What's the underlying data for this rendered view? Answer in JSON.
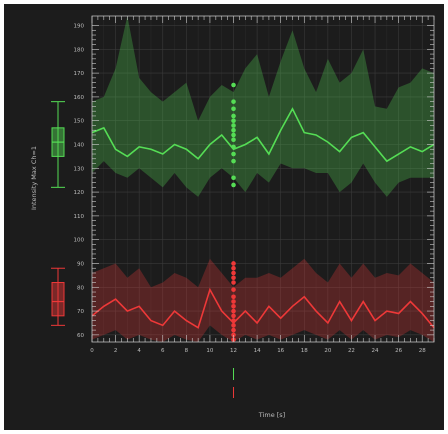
{
  "chart_data": {
    "type": "line",
    "ylabel": "Intensity Max Ch=1",
    "xlabel": "Time [s]",
    "xlim": [
      0,
      29
    ],
    "ylim": [
      57,
      194
    ],
    "x_ticks": [
      0,
      2,
      4,
      6,
      8,
      10,
      12,
      14,
      16,
      18,
      20,
      22,
      24,
      26,
      28
    ],
    "y_ticks": [
      60,
      70,
      80,
      90,
      100,
      110,
      120,
      130,
      140,
      150,
      160,
      170,
      180,
      190
    ],
    "grid": true,
    "colors": {
      "green": "#55dd55",
      "red": "#ee3838",
      "background": "#1c1c1c",
      "axis": "#cfcfcf"
    },
    "series": [
      {
        "color": "green",
        "x": [
          0,
          1,
          2,
          3,
          4,
          5,
          6,
          7,
          8,
          9,
          10,
          11,
          12,
          13,
          14,
          15,
          16,
          17,
          18,
          19,
          20,
          21,
          22,
          23,
          24,
          25,
          26,
          27,
          28,
          29
        ],
        "mean": [
          145,
          147,
          138,
          135,
          139,
          138,
          136,
          140,
          138,
          134,
          140,
          144,
          138,
          140,
          143,
          136,
          146,
          155,
          145,
          144,
          141,
          137,
          143,
          145,
          139,
          133,
          136,
          139,
          137,
          140
        ],
        "upper": [
          158,
          160,
          172,
          194,
          168,
          162,
          158,
          162,
          166,
          150,
          160,
          165,
          162,
          172,
          178,
          160,
          175,
          188,
          172,
          162,
          176,
          166,
          170,
          180,
          156,
          155,
          164,
          166,
          172,
          170
        ],
        "lower": [
          128,
          133,
          128,
          126,
          130,
          126,
          122,
          128,
          122,
          118,
          126,
          130,
          126,
          120,
          128,
          124,
          132,
          130,
          130,
          128,
          128,
          120,
          124,
          132,
          124,
          118,
          124,
          126,
          126,
          126
        ],
        "scatter_x": 12,
        "scatter_y": [
          123,
          126,
          133,
          136,
          139,
          142,
          144,
          146,
          148,
          150,
          152,
          155,
          158,
          165
        ],
        "box": {
          "whisker_low": 122,
          "q1": 135,
          "median": 141,
          "q3": 147,
          "whisker_high": 158
        }
      },
      {
        "color": "red",
        "x": [
          0,
          1,
          2,
          3,
          4,
          5,
          6,
          7,
          8,
          9,
          10,
          11,
          12,
          13,
          14,
          15,
          16,
          17,
          18,
          19,
          20,
          21,
          22,
          23,
          24,
          25,
          26,
          27,
          28,
          29
        ],
        "mean": [
          68,
          72,
          75,
          70,
          72,
          66,
          64,
          70,
          66,
          63,
          79,
          70,
          65,
          70,
          65,
          72,
          67,
          72,
          76,
          70,
          65,
          74,
          66,
          74,
          66,
          70,
          69,
          74,
          69,
          63
        ],
        "upper": [
          86,
          88,
          90,
          84,
          88,
          80,
          82,
          86,
          84,
          80,
          92,
          86,
          80,
          84,
          84,
          86,
          84,
          88,
          92,
          86,
          82,
          90,
          84,
          90,
          84,
          86,
          85,
          90,
          86,
          82
        ],
        "lower": [
          58,
          60,
          62,
          58,
          60,
          58,
          57,
          60,
          58,
          57,
          64,
          60,
          57,
          60,
          58,
          60,
          58,
          60,
          62,
          60,
          58,
          62,
          58,
          62,
          58,
          60,
          59,
          62,
          60,
          57
        ],
        "scatter_x": 12,
        "scatter_y": [
          58,
          60,
          62,
          64,
          66,
          68,
          70,
          72,
          74,
          76,
          79,
          82,
          84,
          86,
          88,
          90
        ],
        "box": {
          "whisker_low": 64,
          "q1": 68,
          "median": 74,
          "q3": 82,
          "whisker_high": 88
        }
      }
    ]
  }
}
